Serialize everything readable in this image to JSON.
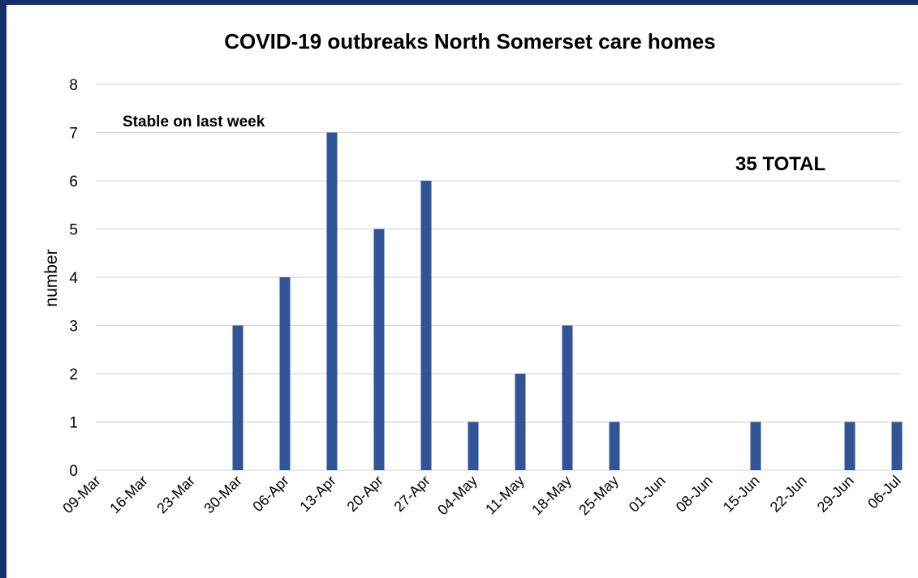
{
  "chart_data": {
    "type": "bar",
    "title": "COVID-19 outbreaks North Somerset care homes",
    "ylabel": "number",
    "xlabel": "",
    "categories": [
      "09-Mar",
      "16-Mar",
      "23-Mar",
      "30-Mar",
      "06-Apr",
      "13-Apr",
      "20-Apr",
      "27-Apr",
      "04-May",
      "11-May",
      "18-May",
      "25-May",
      "01-Jun",
      "08-Jun",
      "15-Jun",
      "22-Jun",
      "29-Jun",
      "06-Jul"
    ],
    "values": [
      0,
      0,
      0,
      3,
      4,
      7,
      5,
      6,
      1,
      2,
      3,
      1,
      0,
      0,
      1,
      0,
      1,
      1
    ],
    "ylim": [
      0,
      8
    ],
    "yticks": [
      "0",
      "1",
      "2",
      "3",
      "4",
      "5",
      "6",
      "7",
      "8"
    ],
    "grid": true,
    "legend": "none",
    "bar_color": "#2f5597",
    "frame_color": "#15306b",
    "annotations": {
      "note": "Stable on last week",
      "total": "35 TOTAL"
    }
  }
}
